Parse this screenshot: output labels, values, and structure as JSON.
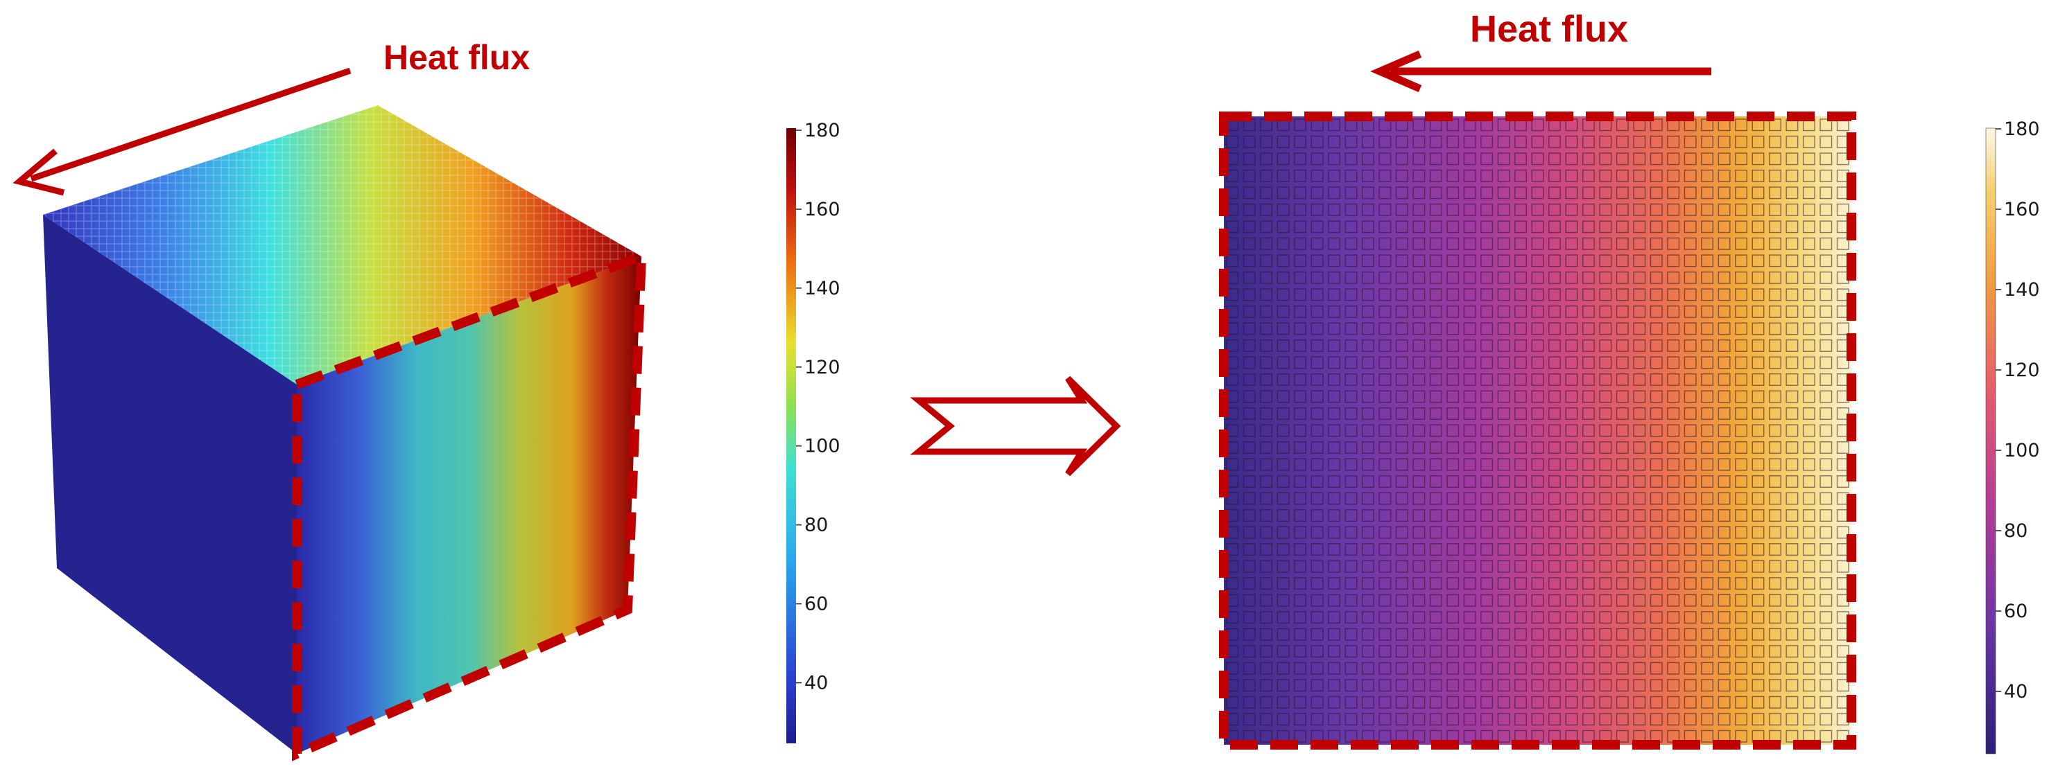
{
  "left_panel": {
    "annotation": "Heat flux",
    "colorbar": {
      "ticks": [
        "180",
        "160",
        "140",
        "120",
        "100",
        "80",
        "60",
        "40"
      ],
      "colormap": "jet",
      "range": [
        25,
        180
      ]
    }
  },
  "right_panel": {
    "annotation": "Heat flux",
    "colorbar": {
      "ticks": [
        "180",
        "160",
        "140",
        "120",
        "100",
        "80",
        "60",
        "40"
      ],
      "colormap": "plasma",
      "range": [
        25,
        180
      ]
    },
    "grid": {
      "columns": 37,
      "rows": 37
    }
  },
  "colors": {
    "accent": "#c00000",
    "cube_side": "#24238f"
  }
}
